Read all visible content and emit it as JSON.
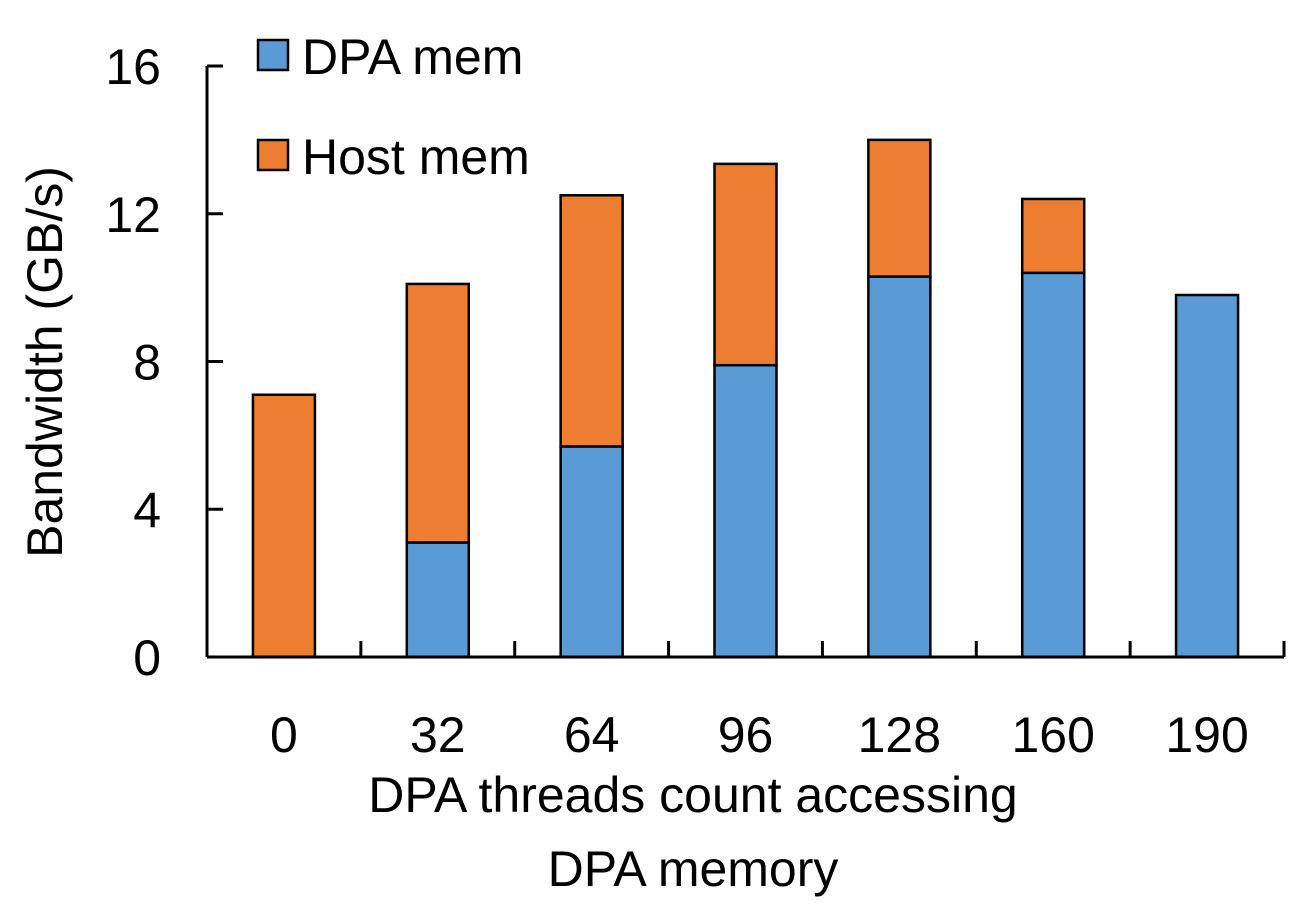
{
  "chart_data": {
    "type": "bar",
    "stacked": true,
    "categories": [
      "0",
      "32",
      "64",
      "96",
      "128",
      "160",
      "190"
    ],
    "series": [
      {
        "name": "DPA mem",
        "color": "#5B9BD5",
        "values": [
          0,
          3.1,
          5.7,
          7.9,
          10.3,
          10.4,
          9.8
        ]
      },
      {
        "name": "Host mem",
        "color": "#ED7D31",
        "values": [
          7.1,
          7.0,
          6.8,
          5.45,
          3.7,
          2.0,
          0
        ]
      }
    ],
    "xlabel_lines": [
      "DPA threads count accessing",
      "DPA memory"
    ],
    "ylabel": "Bandwidth (GB/s)",
    "ylim": [
      0,
      16
    ],
    "yticks": [
      "0",
      "4",
      "8",
      "12",
      "16"
    ],
    "grid": false,
    "legend_position": "top-left"
  }
}
